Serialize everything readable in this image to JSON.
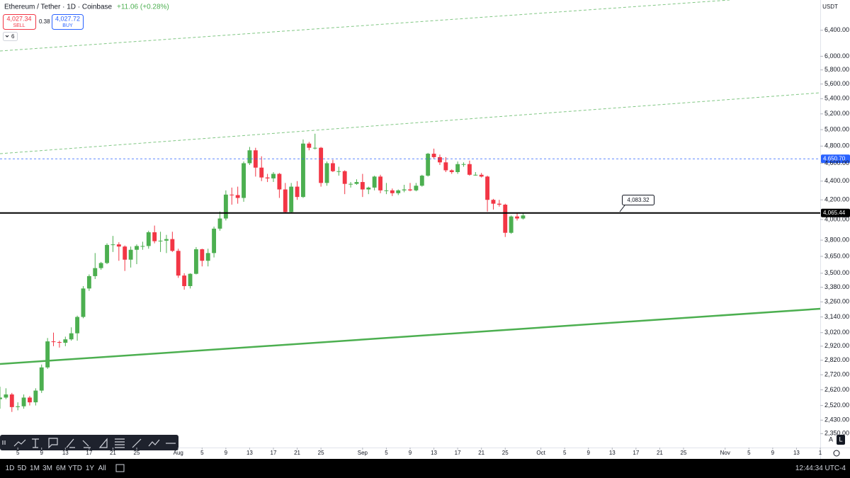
{
  "header": {
    "symbol": "Ethereum / Tether · 1D · Coinbase",
    "change": "+11.06 (+0.28%)",
    "sell_price": "4,027.34",
    "sell_label": "SELL",
    "spread": "0.38",
    "buy_price": "4,027.72",
    "buy_label": "BUY",
    "indicators": "6"
  },
  "chart_data": {
    "type": "candlestick",
    "x": [
      "07-02",
      "07-03",
      "07-04",
      "07-05",
      "07-06",
      "07-07",
      "07-08",
      "07-09",
      "07-10",
      "07-11",
      "07-12",
      "07-13",
      "07-14",
      "07-15",
      "07-16",
      "07-17",
      "07-18",
      "07-19",
      "07-20",
      "07-21",
      "07-22",
      "07-23",
      "07-24",
      "07-25",
      "07-26",
      "07-27",
      "07-28",
      "07-29",
      "07-30",
      "07-31",
      "08-01",
      "08-02",
      "08-03",
      "08-04",
      "08-05",
      "08-06",
      "08-07",
      "08-08",
      "08-09",
      "08-10",
      "08-11",
      "08-12",
      "08-13",
      "08-14",
      "08-15",
      "08-16",
      "08-17",
      "08-18",
      "08-19",
      "08-20",
      "08-21",
      "08-22",
      "08-23",
      "08-24",
      "08-25",
      "08-26",
      "08-27",
      "08-28",
      "08-29",
      "08-30",
      "08-31",
      "09-01",
      "09-02",
      "09-03",
      "09-04",
      "09-05",
      "09-06",
      "09-07",
      "09-08",
      "09-09",
      "09-10",
      "09-11",
      "09-12",
      "09-13",
      "09-14",
      "09-15",
      "09-16",
      "09-17",
      "09-18",
      "09-19",
      "09-20",
      "09-21",
      "09-22",
      "09-23",
      "09-24",
      "09-25",
      "09-26",
      "09-27",
      "09-28"
    ],
    "open": [
      2560,
      2570,
      2590,
      2510,
      2515,
      2570,
      2540,
      2615,
      2770,
      2955,
      2950,
      2945,
      2970,
      3015,
      3140,
      3370,
      3475,
      3545,
      3590,
      3755,
      3760,
      3740,
      3620,
      3710,
      3745,
      3745,
      3875,
      3790,
      3795,
      3810,
      3700,
      3480,
      3390,
      3495,
      3715,
      3610,
      3680,
      3910,
      4010,
      4255,
      4250,
      4220,
      4600,
      4750,
      4550,
      4440,
      4430,
      4480,
      4310,
      4075,
      4340,
      4230,
      4830,
      4780,
      4780,
      4380,
      4600,
      4510,
      4510,
      4370,
      4370,
      4390,
      4310,
      4330,
      4450,
      4300,
      4300,
      4270,
      4300,
      4310,
      4300,
      4350,
      4460,
      4710,
      4670,
      4610,
      4520,
      4500,
      4590,
      4590,
      4470,
      4470,
      4450,
      4200,
      4160,
      4150,
      3870,
      4030,
      4010
    ],
    "high": [
      2640,
      2630,
      2600,
      2540,
      2590,
      2580,
      2630,
      2790,
      2980,
      3020,
      2960,
      2990,
      3060,
      3150,
      3390,
      3490,
      3680,
      3600,
      3770,
      3840,
      3780,
      3750,
      3740,
      3760,
      3785,
      3890,
      3940,
      3880,
      3850,
      3880,
      3720,
      3500,
      3500,
      3735,
      3720,
      3720,
      3930,
      4080,
      4300,
      4330,
      4340,
      4620,
      4790,
      4780,
      4680,
      4480,
      4500,
      4490,
      4380,
      4380,
      4400,
      4880,
      4850,
      4950,
      4790,
      4620,
      4640,
      4560,
      4520,
      4390,
      4420,
      4480,
      4340,
      4460,
      4470,
      4380,
      4320,
      4310,
      4360,
      4380,
      4380,
      4470,
      4720,
      4770,
      4700,
      4670,
      4530,
      4620,
      4610,
      4630,
      4500,
      4490,
      4460,
      4210,
      4200,
      4160,
      4040,
      4060,
      4060
    ],
    "low": [
      2500,
      2560,
      2480,
      2490,
      2500,
      2520,
      2520,
      2600,
      2760,
      2920,
      2910,
      2920,
      2960,
      2960,
      3130,
      3350,
      3450,
      3530,
      3580,
      3690,
      3610,
      3520,
      3550,
      3580,
      3710,
      3720,
      3770,
      3690,
      3680,
      3690,
      3460,
      3360,
      3370,
      3490,
      3560,
      3560,
      3640,
      3890,
      3990,
      4150,
      4160,
      4180,
      4580,
      4450,
      4400,
      4390,
      4390,
      4220,
      4060,
      4060,
      4200,
      4220,
      4750,
      4760,
      4340,
      4350,
      4500,
      4460,
      4260,
      4330,
      4360,
      4230,
      4260,
      4300,
      4270,
      4260,
      4240,
      4250,
      4280,
      4290,
      4290,
      4340,
      4450,
      4650,
      4580,
      4500,
      4480,
      4480,
      4560,
      4460,
      4460,
      4440,
      4080,
      4100,
      4130,
      3830,
      3860,
      3990,
      4000
    ],
    "close": [
      2570,
      2590,
      2510,
      2515,
      2570,
      2540,
      2615,
      2770,
      2955,
      2950,
      2945,
      2970,
      3015,
      3140,
      3370,
      3475,
      3545,
      3590,
      3755,
      3760,
      3740,
      3620,
      3710,
      3745,
      3745,
      3875,
      3790,
      3795,
      3810,
      3700,
      3480,
      3390,
      3495,
      3715,
      3610,
      3680,
      3910,
      4010,
      4255,
      4250,
      4220,
      4600,
      4750,
      4550,
      4440,
      4430,
      4480,
      4310,
      4075,
      4340,
      4230,
      4830,
      4780,
      4780,
      4380,
      4600,
      4510,
      4510,
      4370,
      4370,
      4390,
      4310,
      4330,
      4450,
      4300,
      4300,
      4270,
      4300,
      4310,
      4300,
      4350,
      4460,
      4710,
      4670,
      4610,
      4520,
      4500,
      4590,
      4590,
      4470,
      4470,
      4450,
      4200,
      4160,
      4150,
      3870,
      4030,
      4010,
      4040
    ],
    "up_color": "#4caf50",
    "down_color": "#f23645",
    "log_scale": true,
    "grid": false,
    "ylim": [
      2270,
      6900
    ],
    "yticks": [
      {
        "value": 6400,
        "label": "6,400.00"
      },
      {
        "value": 6000,
        "label": "6,000.00"
      },
      {
        "value": 5800,
        "label": "5,800.00"
      },
      {
        "value": 5600,
        "label": "5,600.00"
      },
      {
        "value": 5400,
        "label": "5,400.00"
      },
      {
        "value": 5200,
        "label": "5,200.00"
      },
      {
        "value": 5000,
        "label": "5,000.00"
      },
      {
        "value": 4800,
        "label": "4,800.00"
      },
      {
        "value": 4600,
        "label": "4,600.00"
      },
      {
        "value": 4400,
        "label": "4,400.00"
      },
      {
        "value": 4200,
        "label": "4,200.00"
      },
      {
        "value": 4000,
        "label": "4,000.00"
      },
      {
        "value": 3800,
        "label": "3,800.00"
      },
      {
        "value": 3650,
        "label": "3,650.00"
      },
      {
        "value": 3500,
        "label": "3,500.00"
      },
      {
        "value": 3380,
        "label": "3,380.00"
      },
      {
        "value": 3260,
        "label": "3,260.00"
      },
      {
        "value": 3140,
        "label": "3,140.00"
      },
      {
        "value": 3020,
        "label": "3,020.00"
      },
      {
        "value": 2920,
        "label": "2,920.00"
      },
      {
        "value": 2820,
        "label": "2,820.00"
      },
      {
        "value": 2720,
        "label": "2,720.00"
      },
      {
        "value": 2620,
        "label": "2,620.00"
      },
      {
        "value": 2520,
        "label": "2,520.00"
      },
      {
        "value": 2430,
        "label": "2,430.00"
      },
      {
        "value": 2350,
        "label": "2,350.00"
      }
    ],
    "xlim": [
      "07-02",
      "11-17"
    ],
    "xticks": [
      {
        "value": "07-05",
        "label": "5"
      },
      {
        "value": "07-09",
        "label": "9"
      },
      {
        "value": "07-13",
        "label": "13"
      },
      {
        "value": "07-17",
        "label": "17"
      },
      {
        "value": "07-21",
        "label": "21"
      },
      {
        "value": "07-25",
        "label": "25"
      },
      {
        "value": "08-01",
        "label": "Aug"
      },
      {
        "value": "08-05",
        "label": "5"
      },
      {
        "value": "08-09",
        "label": "9"
      },
      {
        "value": "08-13",
        "label": "13"
      },
      {
        "value": "08-17",
        "label": "17"
      },
      {
        "value": "08-21",
        "label": "21"
      },
      {
        "value": "08-25",
        "label": "25"
      },
      {
        "value": "09-01",
        "label": "Sep"
      },
      {
        "value": "09-05",
        "label": "5"
      },
      {
        "value": "09-09",
        "label": "9"
      },
      {
        "value": "09-13",
        "label": "13"
      },
      {
        "value": "09-17",
        "label": "17"
      },
      {
        "value": "09-21",
        "label": "21"
      },
      {
        "value": "09-25",
        "label": "25"
      },
      {
        "value": "10-01",
        "label": "Oct"
      },
      {
        "value": "10-05",
        "label": "5"
      },
      {
        "value": "10-09",
        "label": "9"
      },
      {
        "value": "10-13",
        "label": "13"
      },
      {
        "value": "10-17",
        "label": "17"
      },
      {
        "value": "10-21",
        "label": "21"
      },
      {
        "value": "10-25",
        "label": "25"
      },
      {
        "value": "11-01",
        "label": "Nov"
      },
      {
        "value": "11-05",
        "label": "5"
      },
      {
        "value": "11-09",
        "label": "9"
      },
      {
        "value": "11-13",
        "label": "13"
      },
      {
        "value": "11-17",
        "label": "1"
      }
    ],
    "currency": "USDT",
    "price_lines": [
      {
        "value": 4650.7,
        "label": "4,650.70",
        "color": "#2962ff",
        "style": "dashed"
      },
      {
        "value": 4065.44,
        "label": "4,065.44",
        "color": "#000000",
        "style": "solid"
      }
    ],
    "annotation": "4,083.32"
  },
  "toolbar": {
    "ranges": [
      "1D",
      "5D",
      "1M",
      "3M",
      "6M",
      "YTD",
      "1Y",
      "All"
    ],
    "clock": "12:44:34 UTC-4",
    "scale_buttons": [
      "A",
      "L"
    ]
  }
}
